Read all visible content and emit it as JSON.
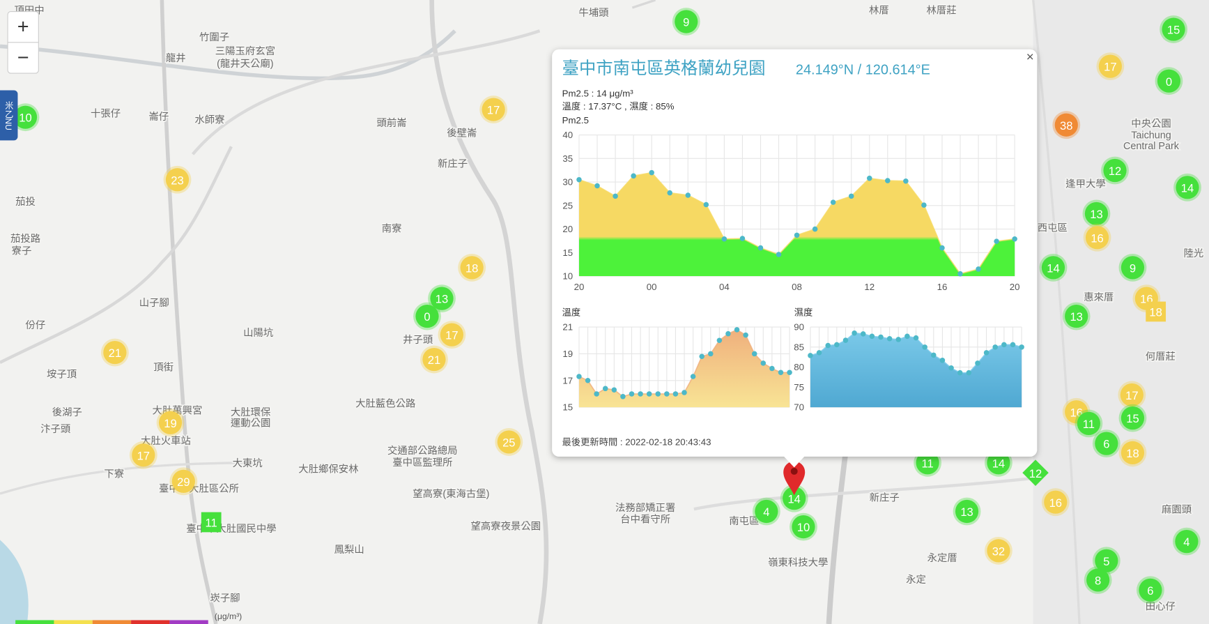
{
  "map": {
    "zoom_in": "+",
    "zoom_out": "−",
    "side_tab": "米乙NU",
    "legend_unit": "(μg/m³)",
    "place_labels": [
      "頂田中",
      "龍井",
      "竹圍子",
      "三陽玉府玄宮",
      "(龍井天公廟)",
      "十張仔",
      "崙仔",
      "水師寮",
      "茄投",
      "茄投路",
      "寮子",
      "份仔",
      "山子腳",
      "山陽坑",
      "頂街",
      "垵子頂",
      "後湖子",
      "汴子頭",
      "大肚環保",
      "運動公園",
      "大肚藍色公路",
      "大肚萬興宮",
      "大肚火車站",
      "大東坑",
      "大肚鄉保安林",
      "下寮",
      "臺中市大肚區公所",
      "臺中市大肚國民中學",
      "鳳梨山",
      "望高寮(東海古堡)",
      "望高寮夜景公園",
      "交通部公路總局",
      "臺中區監理所",
      "法務部矯正署",
      "台中看守所",
      "南屯區",
      "嶺東科技大學",
      "新庄子",
      "永定厝",
      "永定",
      "田心仔",
      "頭前崙",
      "後壁崙",
      "新庄子",
      "南寮",
      "井子頭",
      "牛埔頭",
      "林厝",
      "林厝莊",
      "中央公園",
      "Taichung",
      "Central Park",
      "逢甲大學",
      "西屯區",
      "惠來厝",
      "何厝莊",
      "陸光",
      "麻園頭",
      "崁子腳"
    ],
    "markers": [
      {
        "value": 9,
        "color": "#45e03c"
      },
      {
        "value": 15,
        "color": "#45e03c"
      },
      {
        "value": 17,
        "color": "#f4d04e"
      },
      {
        "value": 0,
        "color": "#45e03c"
      },
      {
        "value": 17,
        "color": "#f4d04e"
      },
      {
        "value": 38,
        "color": "#f08a35"
      },
      {
        "value": 12,
        "color": "#45e03c"
      },
      {
        "value": 10,
        "color": "#45e03c"
      },
      {
        "value": 23,
        "color": "#f4d04e"
      },
      {
        "value": 14,
        "color": "#45e03c"
      },
      {
        "value": 13,
        "color": "#45e03c"
      },
      {
        "value": 16,
        "color": "#f4d04e"
      },
      {
        "value": 18,
        "color": "#f4d04e"
      },
      {
        "value": 14,
        "color": "#45e03c"
      },
      {
        "value": 9,
        "color": "#45e03c"
      },
      {
        "value": 13,
        "color": "#45e03c"
      },
      {
        "value": 0,
        "color": "#45e03c"
      },
      {
        "value": 17,
        "color": "#f4d04e"
      },
      {
        "value": 13,
        "color": "#45e03c"
      },
      {
        "value": 16,
        "color": "#f4d04e"
      },
      {
        "value": 18,
        "color": "#f4d04e",
        "shape": "square"
      },
      {
        "value": 21,
        "color": "#f4d04e"
      },
      {
        "value": 21,
        "color": "#f4d04e"
      },
      {
        "value": 17,
        "color": "#f4d04e"
      },
      {
        "value": 16,
        "color": "#f4d04e"
      },
      {
        "value": 11,
        "color": "#45e03c"
      },
      {
        "value": 15,
        "color": "#45e03c"
      },
      {
        "value": 6,
        "color": "#45e03c"
      },
      {
        "value": 18,
        "color": "#f4d04e"
      },
      {
        "value": 19,
        "color": "#f4d04e"
      },
      {
        "value": 25,
        "color": "#f4d04e"
      },
      {
        "value": 17,
        "color": "#f4d04e"
      },
      {
        "value": 29,
        "color": "#f4d04e"
      },
      {
        "value": 11,
        "color": "#45e03c",
        "shape": "square"
      },
      {
        "value": 11,
        "color": "#45e03c"
      },
      {
        "value": 14,
        "color": "#45e03c"
      },
      {
        "value": 12,
        "color": "#45e03c",
        "shape": "diamond"
      },
      {
        "value": 14,
        "color": "#45e03c"
      },
      {
        "value": 4,
        "color": "#45e03c"
      },
      {
        "value": 10,
        "color": "#45e03c"
      },
      {
        "value": 13,
        "color": "#45e03c"
      },
      {
        "value": 16,
        "color": "#f4d04e"
      },
      {
        "value": 32,
        "color": "#f4d04e"
      },
      {
        "value": 5,
        "color": "#45e03c"
      },
      {
        "value": 8,
        "color": "#45e03c"
      },
      {
        "value": 6,
        "color": "#45e03c"
      },
      {
        "value": 4,
        "color": "#45e03c"
      }
    ]
  },
  "popup": {
    "title": "臺中市南屯區英格蘭幼兒園",
    "coordinates": "24.149°N / 120.614°E",
    "close": "×",
    "lines": [
      "Pm2.5 : 14 μg/m³",
      "溫度 : 17.37°C , 濕度 : 85%"
    ],
    "updated": "最後更新時間 : 2022-02-18 20:43:43"
  },
  "chart_data": [
    {
      "type": "area",
      "title": "Pm2.5",
      "fill_style": "split",
      "colors": [
        "#f6d963",
        "#4df23a"
      ],
      "point_color": "#4db8c8",
      "grid": true,
      "categories": [
        "20",
        null,
        null,
        null,
        "00",
        null,
        null,
        null,
        "04",
        null,
        null,
        null,
        "08",
        null,
        null,
        null,
        "12",
        null,
        null,
        null,
        "16",
        null,
        null,
        null,
        "20"
      ],
      "values": [
        30.5,
        29.2,
        27,
        31.3,
        32,
        27.7,
        27.2,
        25.2,
        17.9,
        18,
        16,
        14.6,
        18.7,
        20,
        25.7,
        27,
        30.8,
        30.3,
        30.2,
        25.1,
        16,
        10.5,
        11.5,
        17.4,
        17.9
      ],
      "ylim": [
        10,
        40
      ],
      "yticks": [
        10,
        15,
        20,
        25,
        30,
        35,
        40
      ]
    },
    {
      "type": "area",
      "title": "溫度",
      "fill_style": "smooth",
      "colors": [
        "#efae7c",
        "#f8e495"
      ],
      "point_color": "#4db8c8",
      "grid": true,
      "values": [
        17.3,
        17.0,
        16.0,
        16.4,
        16.3,
        15.8,
        16.0,
        16.0,
        16.0,
        16.0,
        16.0,
        16.0,
        16.1,
        17.3,
        18.8,
        19.0,
        20.0,
        20.5,
        20.8,
        20.4,
        19.0,
        18.3,
        17.9,
        17.6,
        17.6
      ],
      "ylim": [
        15,
        21
      ],
      "yticks": [
        15,
        17,
        19,
        21
      ]
    },
    {
      "type": "area",
      "title": "濕度",
      "fill_style": "smooth",
      "colors": [
        "#7dcbea",
        "#4fa8d2"
      ],
      "point_color": "#4db8c8",
      "grid": true,
      "values": [
        82.9,
        83.6,
        85.4,
        85.6,
        86.7,
        88.5,
        88.3,
        87.7,
        87.5,
        87.1,
        86.9,
        87.7,
        87.3,
        85.0,
        83.0,
        81.7,
        79.8,
        78.6,
        78.6,
        81.0,
        83.6,
        85.0,
        85.6,
        85.6,
        85.0
      ],
      "ylim": [
        70,
        90
      ],
      "yticks": [
        70,
        75,
        80,
        85,
        90
      ]
    }
  ]
}
